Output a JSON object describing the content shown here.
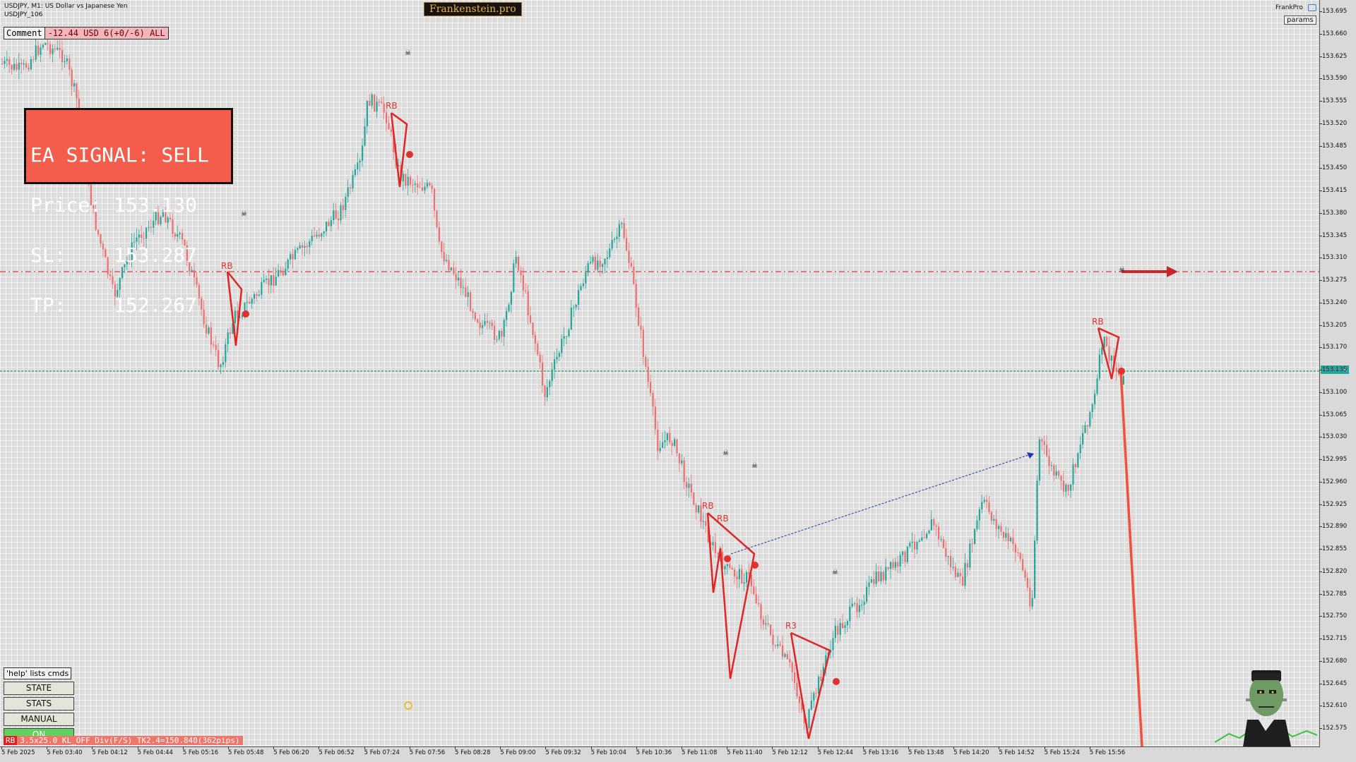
{
  "header": {
    "symbol_line": "USDJPY, M1:  US Dollar vs Japanese Yen",
    "account_line": "USDJPY_106",
    "brand": "Frankenstein.pro"
  },
  "comment": {
    "label": "Comment",
    "value": "-12.44 USD 6(+0/-6) ALL"
  },
  "signal": {
    "line1": "EA SIGNAL: SELL",
    "line2": "Price: 153.130",
    "line3": "SL:    153.287",
    "line4": "TP:    152.267"
  },
  "top_right": {
    "label": "FrankPro",
    "params_label": "params"
  },
  "commands": {
    "help": "'help' lists cmds",
    "state": "STATE",
    "stats": "STATS",
    "manual": "MANUAL",
    "on": "ON"
  },
  "status": {
    "tag": "RB",
    "text": "3.5x25.0 KL_OFF Div(F/S) TK2.4=150.840(362pips)"
  },
  "price_axis": {
    "current": "153.131",
    "levels": [
      "153.695",
      "153.660",
      "153.625",
      "153.590",
      "153.555",
      "153.520",
      "153.485",
      "153.450",
      "153.415",
      "153.380",
      "153.345",
      "153.310",
      "153.275",
      "153.240",
      "153.205",
      "153.170",
      "153.135",
      "153.100",
      "153.065",
      "153.030",
      "152.995",
      "152.960",
      "152.925",
      "152.890",
      "152.855",
      "152.820",
      "152.785",
      "152.750",
      "152.715",
      "152.680",
      "152.645",
      "152.610",
      "152.575"
    ]
  },
  "time_axis": {
    "labels": [
      "5 Feb 2025",
      "5 Feb 03:40",
      "5 Feb 04:12",
      "5 Feb 04:44",
      "5 Feb 05:16",
      "5 Feb 05:48",
      "5 Feb 06:20",
      "5 Feb 06:52",
      "5 Feb 07:24",
      "5 Feb 07:56",
      "5 Feb 08:28",
      "5 Feb 09:00",
      "5 Feb 09:32",
      "5 Feb 10:04",
      "5 Feb 10:36",
      "5 Feb 11:08",
      "5 Feb 11:40",
      "5 Feb 12:12",
      "5 Feb 12:44",
      "5 Feb 13:16",
      "5 Feb 13:48",
      "5 Feb 14:20",
      "5 Feb 14:52",
      "5 Feb 15:24",
      "5 Feb 15:56"
    ]
  },
  "markers": {
    "rb": "RB",
    "rb_alt": "R3",
    "skull": "☠"
  },
  "colors": {
    "bull": "#26a69a",
    "bear": "#ef6f6f",
    "signal_bg": "#f45d4b",
    "sl_line": "#d83a3a",
    "bid_line": "#1e9e6e"
  }
}
